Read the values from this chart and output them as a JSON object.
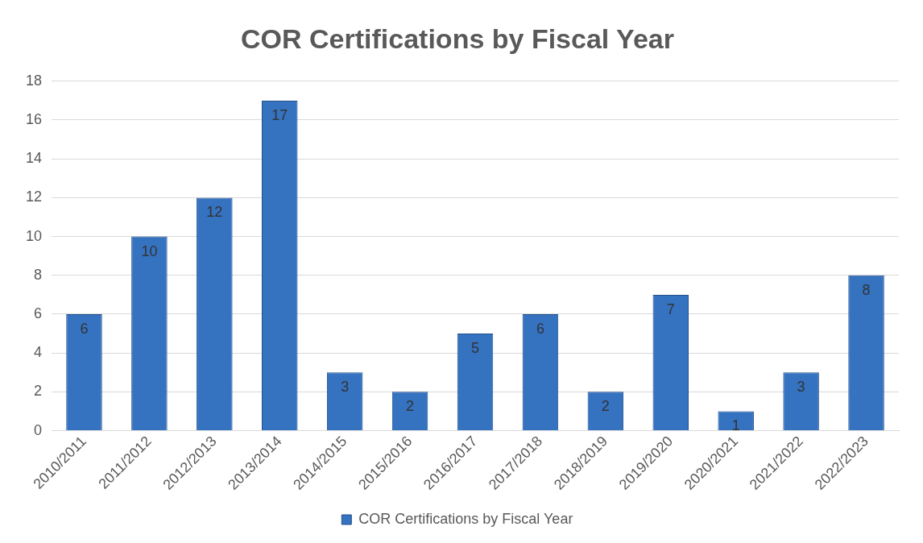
{
  "chart_data": {
    "type": "bar",
    "title": "COR Certifications by Fiscal Year",
    "categories": [
      "2010/2011",
      "2011/2012",
      "2012/2013",
      "2013/2014",
      "2014/2015",
      "2015/2016",
      "2016/2017",
      "2017/2018",
      "2018/2019",
      "2019/2020",
      "2020/2021",
      "2021/2022",
      "2022/2023"
    ],
    "series": [
      {
        "name": "COR Certifications by Fiscal Year",
        "color": "#3572c0",
        "values": [
          6,
          10,
          12,
          17,
          3,
          2,
          5,
          6,
          2,
          7,
          1,
          3,
          8
        ]
      }
    ],
    "ylim": [
      0,
      18
    ],
    "yticks": [
      0,
      2,
      4,
      6,
      8,
      10,
      12,
      14,
      16,
      18
    ],
    "grid": "y",
    "legend": "bottom",
    "data_labels": true
  }
}
